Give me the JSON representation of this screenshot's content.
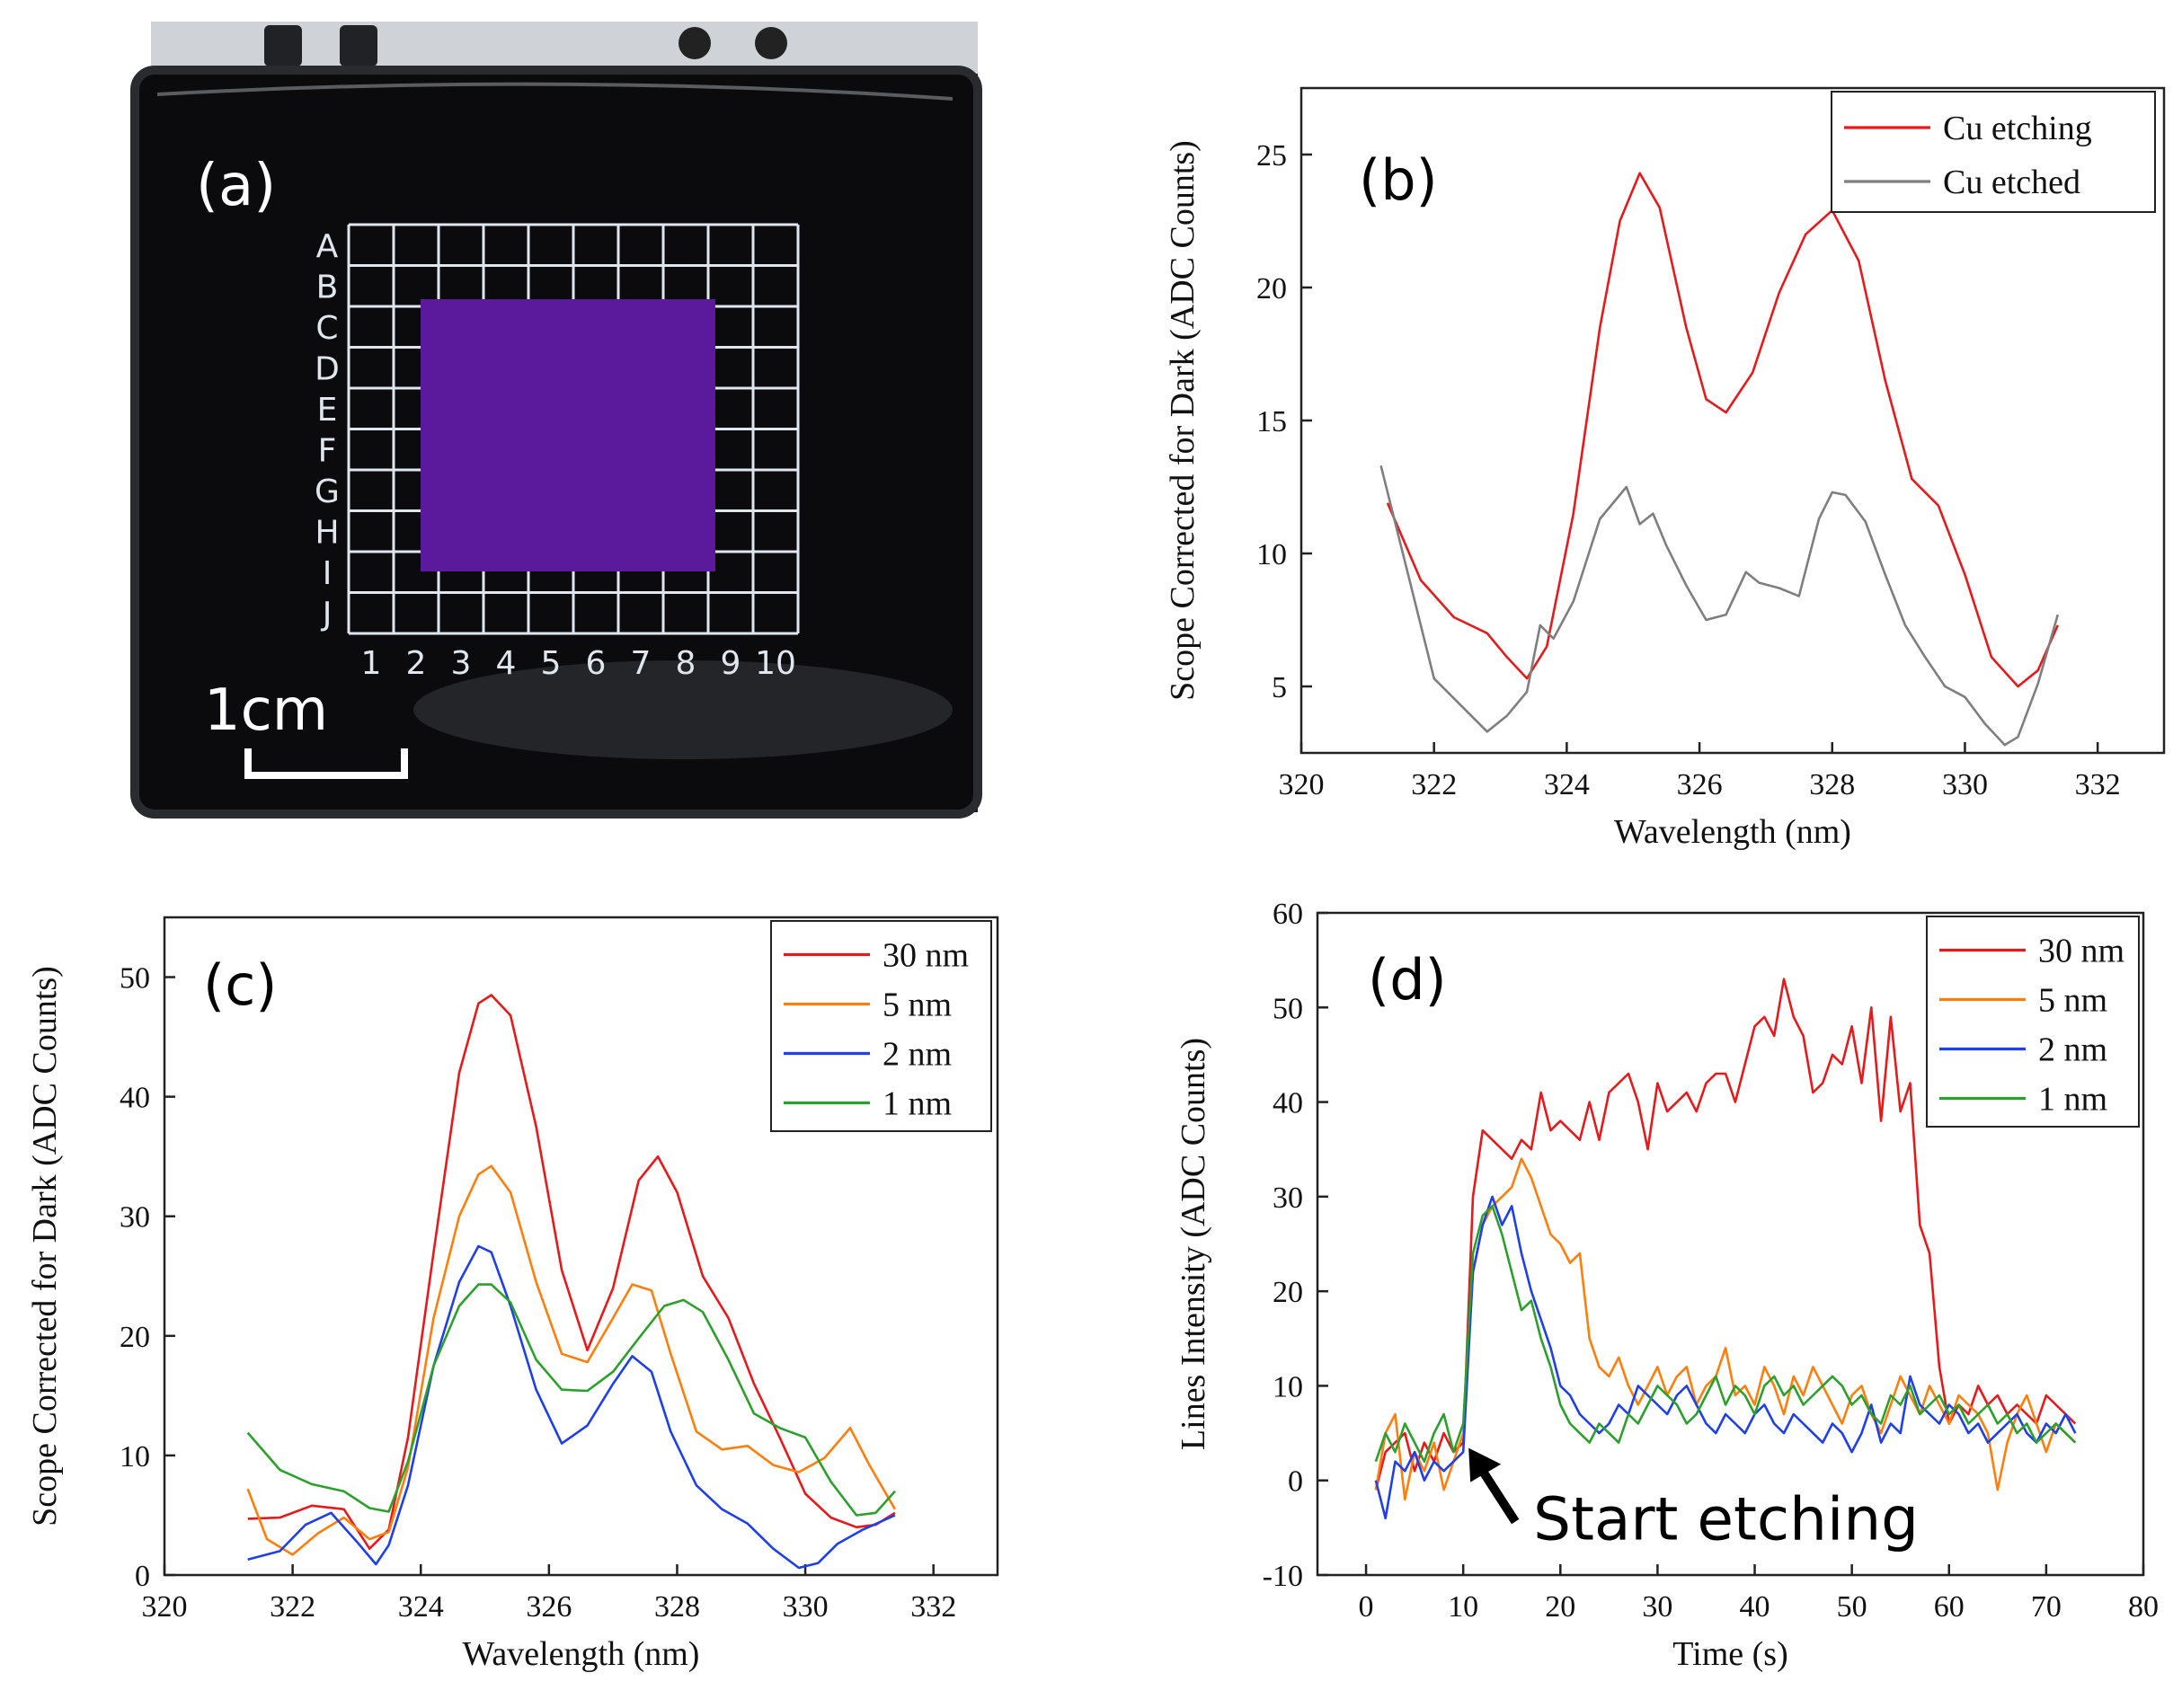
{
  "panel_a": {
    "label": "(a)",
    "row_labels": [
      "A",
      "B",
      "C",
      "D",
      "E",
      "F",
      "G",
      "H",
      "I",
      "J"
    ],
    "col_labels": [
      "1",
      "2",
      "3",
      "4",
      "5",
      "6",
      "7",
      "8",
      "9",
      "10"
    ],
    "scale_label": "1cm",
    "colors": {
      "tray": "#0b0b0d",
      "grid": "#dfe6ee",
      "sample": "#5b1a9c"
    }
  },
  "chart_data": [
    {
      "panel": "(b)",
      "type": "line",
      "xlabel": "Wavelength (nm)",
      "ylabel": "Scope Corrected for Dark (ADC Counts)",
      "xlim": [
        320,
        333
      ],
      "ylim": [
        2.5,
        27.5
      ],
      "xticks": [
        320,
        322,
        324,
        326,
        328,
        330,
        332
      ],
      "yticks": [
        5,
        10,
        15,
        20,
        25
      ],
      "legend_position": "top-right",
      "series": [
        {
          "name": "Cu etching",
          "color": "#e41a1c",
          "x": [
            321.3,
            321.8,
            322.3,
            322.8,
            323.1,
            323.4,
            323.7,
            324.1,
            324.5,
            324.8,
            325.1,
            325.4,
            325.8,
            326.1,
            326.4,
            326.8,
            327.2,
            327.6,
            328.0,
            328.4,
            328.8,
            329.2,
            329.6,
            330.0,
            330.4,
            330.8,
            331.1,
            331.4
          ],
          "y": [
            11.9,
            9.0,
            7.6,
            7.0,
            6.1,
            5.3,
            6.5,
            11.5,
            18.5,
            22.5,
            24.3,
            23.0,
            18.5,
            15.8,
            15.3,
            16.8,
            19.8,
            22.0,
            22.9,
            21.0,
            16.5,
            12.8,
            11.8,
            9.2,
            6.1,
            5.0,
            5.6,
            7.3
          ]
        },
        {
          "name": "Cu etched",
          "color": "#7f7f7f",
          "x": [
            321.2,
            321.6,
            322.0,
            322.4,
            322.8,
            323.1,
            323.4,
            323.6,
            323.8,
            324.1,
            324.5,
            324.9,
            325.1,
            325.3,
            325.5,
            325.8,
            326.1,
            326.4,
            326.7,
            326.9,
            327.2,
            327.5,
            327.8,
            328.0,
            328.2,
            328.5,
            328.8,
            329.1,
            329.4,
            329.7,
            330.0,
            330.3,
            330.6,
            330.8,
            331.1,
            331.4
          ],
          "y": [
            13.3,
            9.3,
            5.3,
            4.3,
            3.3,
            3.9,
            4.8,
            7.3,
            6.8,
            8.2,
            11.3,
            12.5,
            11.1,
            11.5,
            10.3,
            8.8,
            7.5,
            7.7,
            9.3,
            8.9,
            8.7,
            8.4,
            11.3,
            12.3,
            12.2,
            11.2,
            9.2,
            7.3,
            6.1,
            5.0,
            4.6,
            3.6,
            2.8,
            3.1,
            5.1,
            7.7
          ]
        }
      ]
    },
    {
      "panel": "(c)",
      "type": "line",
      "xlabel": "Wavelength (nm)",
      "ylabel": "Scope Corrected for Dark (ADC Counts)",
      "xlim": [
        320,
        333
      ],
      "ylim": [
        0,
        55
      ],
      "xticks": [
        320,
        322,
        324,
        326,
        328,
        330,
        332
      ],
      "yticks": [
        0,
        10,
        20,
        30,
        40,
        50
      ],
      "legend_position": "top-right",
      "series": [
        {
          "name": "30 nm",
          "color": "#e41a1c",
          "x": [
            321.3,
            321.8,
            322.3,
            322.8,
            323.2,
            323.5,
            323.8,
            324.2,
            324.6,
            324.9,
            325.1,
            325.4,
            325.8,
            326.2,
            326.6,
            327.0,
            327.4,
            327.7,
            328.0,
            328.4,
            328.8,
            329.2,
            329.6,
            330.0,
            330.4,
            330.8,
            331.1,
            331.4
          ],
          "y": [
            4.7,
            4.8,
            5.8,
            5.5,
            2.2,
            3.8,
            11.5,
            27.0,
            42.0,
            47.8,
            48.5,
            46.8,
            37.5,
            25.5,
            18.8,
            24.0,
            33.0,
            35.0,
            32.0,
            25.0,
            21.5,
            16.0,
            11.5,
            6.8,
            4.8,
            4.0,
            4.2,
            5.2
          ]
        },
        {
          "name": "5 nm",
          "color": "#ff7f0e",
          "x": [
            321.3,
            321.6,
            322.0,
            322.4,
            322.8,
            323.2,
            323.5,
            323.8,
            324.2,
            324.6,
            324.9,
            325.1,
            325.4,
            325.8,
            326.2,
            326.6,
            327.0,
            327.3,
            327.6,
            327.9,
            328.3,
            328.7,
            329.1,
            329.5,
            329.9,
            330.3,
            330.7,
            331.0,
            331.4
          ],
          "y": [
            7.2,
            3.0,
            1.7,
            3.5,
            4.8,
            3.0,
            3.6,
            9.0,
            21.5,
            30.0,
            33.5,
            34.2,
            32.0,
            24.5,
            18.5,
            17.8,
            21.5,
            24.3,
            23.8,
            18.5,
            12.0,
            10.5,
            10.8,
            9.2,
            8.6,
            9.8,
            12.3,
            9.2,
            5.5
          ]
        },
        {
          "name": "2 nm",
          "color": "#1f3fe8",
          "x": [
            321.3,
            321.8,
            322.2,
            322.6,
            323.0,
            323.3,
            323.5,
            323.8,
            324.2,
            324.6,
            324.9,
            325.1,
            325.4,
            325.8,
            326.2,
            326.6,
            327.0,
            327.3,
            327.6,
            327.9,
            328.3,
            328.7,
            329.1,
            329.5,
            329.9,
            330.2,
            330.5,
            330.9,
            331.4
          ],
          "y": [
            1.3,
            2.0,
            4.2,
            5.2,
            2.8,
            0.9,
            2.5,
            7.5,
            17.5,
            24.5,
            27.5,
            27.0,
            22.5,
            15.5,
            11.0,
            12.5,
            16.0,
            18.3,
            17.0,
            12.0,
            7.5,
            5.5,
            4.3,
            2.2,
            0.6,
            1.0,
            2.6,
            3.8,
            5.0
          ]
        },
        {
          "name": "1 nm",
          "color": "#2ca02c",
          "x": [
            321.3,
            321.8,
            322.3,
            322.8,
            323.2,
            323.5,
            323.8,
            324.2,
            324.6,
            324.9,
            325.1,
            325.4,
            325.8,
            326.2,
            326.6,
            327.0,
            327.4,
            327.8,
            328.1,
            328.4,
            328.8,
            329.2,
            329.6,
            330.0,
            330.4,
            330.8,
            331.1,
            331.4
          ],
          "y": [
            11.9,
            8.8,
            7.6,
            7.0,
            5.6,
            5.3,
            9.5,
            17.5,
            22.5,
            24.3,
            24.3,
            22.8,
            18.0,
            15.5,
            15.4,
            17.0,
            19.8,
            22.5,
            23.0,
            22.0,
            18.0,
            13.5,
            12.3,
            11.5,
            7.8,
            5.0,
            5.2,
            7.0
          ]
        }
      ]
    },
    {
      "panel": "(d)",
      "type": "line",
      "xlabel": "Time (s)",
      "ylabel": "Lines Intensity  (ADC Counts)",
      "xlim": [
        -5,
        80
      ],
      "ylim": [
        -10,
        60
      ],
      "xticks": [
        0,
        10,
        20,
        30,
        40,
        50,
        60,
        70,
        80
      ],
      "yticks": [
        -10,
        0,
        10,
        20,
        30,
        40,
        50,
        60
      ],
      "legend_position": "top-right",
      "annotation": "Start etching",
      "annotation_point": [
        10,
        4
      ],
      "series": [
        {
          "name": "30 nm",
          "color": "#e41a1c",
          "x": [
            1,
            2,
            3,
            4,
            5,
            6,
            7,
            8,
            9,
            10,
            11,
            12,
            13,
            14,
            15,
            16,
            17,
            18,
            19,
            20,
            21,
            22,
            23,
            24,
            25,
            26,
            27,
            28,
            29,
            30,
            31,
            32,
            33,
            34,
            35,
            36,
            37,
            38,
            39,
            40,
            41,
            42,
            43,
            44,
            45,
            46,
            47,
            48,
            49,
            50,
            51,
            52,
            53,
            54,
            55,
            56,
            57,
            58,
            59,
            60,
            61,
            62,
            63,
            64,
            65,
            66,
            67,
            68,
            69,
            70,
            71,
            72,
            73
          ],
          "y": [
            -1,
            3,
            4,
            5,
            1,
            4,
            2,
            5,
            3,
            4,
            30,
            37,
            36,
            35,
            34,
            36,
            35,
            41,
            37,
            38,
            37,
            36,
            40,
            36,
            41,
            42,
            43,
            40,
            35,
            42,
            39,
            40,
            41,
            39,
            42,
            43,
            43,
            40,
            44,
            48,
            49,
            47,
            53,
            49,
            47,
            41,
            42,
            45,
            44,
            48,
            42,
            50,
            38,
            49,
            39,
            42,
            27,
            24,
            12,
            6,
            8,
            7,
            10,
            8,
            9,
            7,
            8,
            7,
            6,
            9,
            8,
            7,
            6
          ]
        },
        {
          "name": "5 nm",
          "color": "#ff7f0e",
          "x": [
            1,
            2,
            3,
            4,
            5,
            6,
            7,
            8,
            9,
            10,
            11,
            12,
            13,
            14,
            15,
            16,
            17,
            18,
            19,
            20,
            21,
            22,
            23,
            24,
            25,
            26,
            27,
            28,
            29,
            30,
            31,
            32,
            33,
            34,
            35,
            36,
            37,
            38,
            39,
            40,
            41,
            42,
            43,
            44,
            45,
            46,
            47,
            48,
            49,
            50,
            51,
            52,
            53,
            54,
            55,
            56,
            57,
            58,
            59,
            60,
            61,
            62,
            63,
            64,
            65,
            66,
            67,
            68,
            69,
            70,
            71,
            72,
            73
          ],
          "y": [
            -1,
            5,
            7,
            -2,
            3,
            1,
            4,
            -1,
            2,
            5,
            22,
            27,
            29,
            30,
            31,
            34,
            32,
            29,
            26,
            25,
            23,
            24,
            15,
            12,
            11,
            13,
            10,
            8,
            10,
            12,
            9,
            11,
            12,
            8,
            10,
            11,
            14,
            9,
            10,
            8,
            12,
            10,
            7,
            11,
            9,
            12,
            10,
            8,
            6,
            9,
            10,
            7,
            5,
            8,
            11,
            9,
            7,
            10,
            8,
            6,
            9,
            8,
            7,
            5,
            -1,
            4,
            7,
            9,
            6,
            3,
            6,
            5,
            4
          ]
        },
        {
          "name": "2 nm",
          "color": "#1f3fe8",
          "x": [
            1,
            2,
            3,
            4,
            5,
            6,
            7,
            8,
            9,
            10,
            11,
            12,
            13,
            14,
            15,
            16,
            17,
            18,
            19,
            20,
            21,
            22,
            23,
            24,
            25,
            26,
            27,
            28,
            29,
            30,
            31,
            32,
            33,
            34,
            35,
            36,
            37,
            38,
            39,
            40,
            41,
            42,
            43,
            44,
            45,
            46,
            47,
            48,
            49,
            50,
            51,
            52,
            53,
            54,
            55,
            56,
            57,
            58,
            59,
            60,
            61,
            62,
            63,
            64,
            65,
            66,
            67,
            68,
            69,
            70,
            71,
            72,
            73
          ],
          "y": [
            0,
            -4,
            2,
            1,
            3,
            0,
            2,
            1,
            2,
            3,
            22,
            27,
            30,
            27,
            29,
            24,
            20,
            17,
            14,
            10,
            9,
            7,
            6,
            5,
            6,
            8,
            7,
            10,
            9,
            8,
            7,
            9,
            10,
            8,
            6,
            5,
            7,
            6,
            5,
            7,
            8,
            6,
            5,
            7,
            6,
            5,
            4,
            6,
            5,
            3,
            5,
            8,
            4,
            6,
            5,
            11,
            8,
            7,
            6,
            8,
            7,
            5,
            6,
            4,
            5,
            6,
            7,
            5,
            4,
            6,
            5,
            7,
            5
          ]
        },
        {
          "name": "1 nm",
          "color": "#2ca02c",
          "x": [
            1,
            2,
            3,
            4,
            5,
            6,
            7,
            8,
            9,
            10,
            11,
            12,
            13,
            14,
            15,
            16,
            17,
            18,
            19,
            20,
            21,
            22,
            23,
            24,
            25,
            26,
            27,
            28,
            29,
            30,
            31,
            32,
            33,
            34,
            35,
            36,
            37,
            38,
            39,
            40,
            41,
            42,
            43,
            44,
            45,
            46,
            47,
            48,
            49,
            50,
            51,
            52,
            53,
            54,
            55,
            56,
            57,
            58,
            59,
            60,
            61,
            62,
            63,
            64,
            65,
            66,
            67,
            68,
            69,
            70,
            71,
            72,
            73
          ],
          "y": [
            2,
            5,
            3,
            6,
            4,
            2,
            5,
            7,
            3,
            6,
            24,
            28,
            29,
            26,
            22,
            18,
            19,
            15,
            12,
            8,
            6,
            5,
            4,
            6,
            5,
            4,
            7,
            6,
            8,
            10,
            9,
            8,
            6,
            7,
            9,
            11,
            8,
            10,
            9,
            7,
            10,
            11,
            9,
            10,
            8,
            9,
            10,
            11,
            10,
            8,
            9,
            7,
            6,
            9,
            8,
            10,
            7,
            8,
            9,
            7,
            8,
            6,
            7,
            8,
            6,
            7,
            5,
            6,
            4,
            5,
            6,
            5,
            4
          ]
        }
      ]
    }
  ]
}
